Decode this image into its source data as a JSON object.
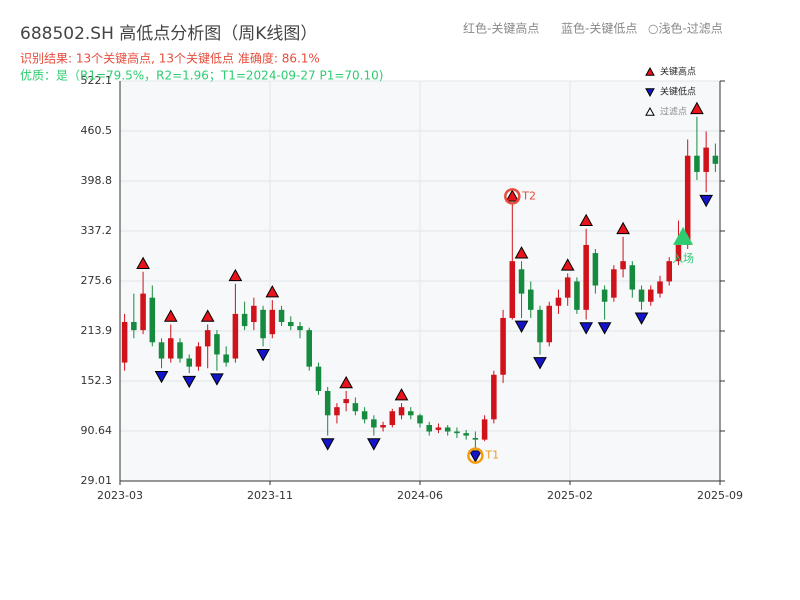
{
  "chart_data": {
    "type": "candlestick",
    "title": "688502.SH 高低点分析图（周K线图）",
    "header_legend": [
      "红色-关键高点",
      "蓝色-关键低点",
      "○浅色-过滤点"
    ],
    "result_text": "识别结果: 13个关键高点, 13个关键低点  准确度: 86.1%",
    "quality_text": "优质：是（R1=79.5%，R2=1.96；T1=2024-09-27 P1=70.10)",
    "up_color": "#d0121b",
    "down_color": "#168a3e",
    "ylim": [
      29.01,
      522.1
    ],
    "yticks": [
      29.01,
      90.64,
      152.3,
      213.9,
      275.6,
      337.2,
      398.8,
      460.5,
      522.1
    ],
    "xlim": [
      -0.5,
      64.5
    ],
    "xticks": [
      {
        "value": -0.5,
        "label": "2023-03"
      },
      {
        "value": 15.75,
        "label": "2023-11"
      },
      {
        "value": 32,
        "label": "2024-06"
      },
      {
        "value": 48.25,
        "label": "2025-02"
      },
      {
        "value": 64.5,
        "label": "2025-09"
      }
    ],
    "grid": true,
    "ohlc": [
      [
        175,
        235,
        165,
        225
      ],
      [
        225,
        260,
        205,
        215
      ],
      [
        215,
        287,
        210,
        260
      ],
      [
        255,
        270,
        195,
        200
      ],
      [
        200,
        205,
        168,
        180
      ],
      [
        180,
        222,
        175,
        205
      ],
      [
        200,
        205,
        175,
        180
      ],
      [
        180,
        185,
        162,
        170
      ],
      [
        170,
        200,
        165,
        195
      ],
      [
        195,
        222,
        168,
        215
      ],
      [
        210,
        215,
        165,
        185
      ],
      [
        185,
        195,
        170,
        175
      ],
      [
        180,
        272,
        175,
        235
      ],
      [
        235,
        250,
        215,
        220
      ],
      [
        225,
        255,
        215,
        245
      ],
      [
        240,
        245,
        195,
        205
      ],
      [
        210,
        252,
        205,
        240
      ],
      [
        240,
        245,
        220,
        225
      ],
      [
        225,
        232,
        215,
        220
      ],
      [
        220,
        225,
        205,
        215
      ],
      [
        215,
        218,
        165,
        170
      ],
      [
        170,
        175,
        135,
        140
      ],
      [
        140,
        145,
        85,
        110
      ],
      [
        110,
        125,
        100,
        120
      ],
      [
        125,
        140,
        115,
        130
      ],
      [
        125,
        132,
        110,
        115
      ],
      [
        115,
        120,
        100,
        105
      ],
      [
        105,
        110,
        85,
        95
      ],
      [
        95,
        102,
        90,
        98
      ],
      [
        98,
        118,
        95,
        115
      ],
      [
        110,
        125,
        105,
        120
      ],
      [
        115,
        120,
        105,
        110
      ],
      [
        110,
        112,
        95,
        100
      ],
      [
        98,
        102,
        85,
        90
      ],
      [
        92,
        100,
        88,
        95
      ],
      [
        95,
        98,
        85,
        90
      ],
      [
        90,
        95,
        82,
        88
      ],
      [
        88,
        92,
        80,
        85
      ],
      [
        82,
        90,
        70.1,
        80
      ],
      [
        80,
        110,
        78,
        105
      ],
      [
        105,
        165,
        100,
        160
      ],
      [
        160,
        240,
        150,
        230
      ],
      [
        230,
        370,
        228,
        300
      ],
      [
        290,
        300,
        230,
        260
      ],
      [
        265,
        275,
        230,
        240
      ],
      [
        240,
        245,
        185,
        200
      ],
      [
        200,
        250,
        195,
        245
      ],
      [
        245,
        265,
        235,
        255
      ],
      [
        255,
        285,
        245,
        280
      ],
      [
        275,
        280,
        235,
        240
      ],
      [
        240,
        340,
        228,
        320
      ],
      [
        310,
        315,
        260,
        270
      ],
      [
        265,
        270,
        228,
        250
      ],
      [
        255,
        295,
        250,
        290
      ],
      [
        290,
        330,
        280,
        300
      ],
      [
        295,
        300,
        255,
        265
      ],
      [
        265,
        270,
        240,
        250
      ],
      [
        250,
        270,
        245,
        265
      ],
      [
        260,
        282,
        255,
        275
      ],
      [
        275,
        305,
        270,
        300
      ],
      [
        300,
        350,
        295,
        320
      ],
      [
        320,
        450,
        315,
        430
      ],
      [
        430,
        478,
        400,
        410
      ],
      [
        410,
        460,
        385,
        440
      ],
      [
        430,
        445,
        410,
        420
      ]
    ],
    "series": [
      {
        "name": "关键高点",
        "color": "#e8141c",
        "kind": "high",
        "x": [
          2,
          5,
          9,
          12,
          16,
          24,
          30,
          42,
          43,
          48,
          50,
          54,
          62
        ],
        "values": [
          287,
          222,
          222,
          272,
          252,
          140,
          125,
          370,
          300,
          285,
          340,
          330,
          478
        ]
      },
      {
        "name": "关键低点",
        "color": "#1414c8",
        "kind": "low",
        "x": [
          4,
          7,
          10,
          15,
          22,
          27,
          38,
          43,
          45,
          50,
          52,
          56,
          63
        ],
        "values": [
          168,
          162,
          165,
          195,
          85,
          85,
          70.1,
          230,
          185,
          228,
          228,
          240,
          385
        ]
      },
      {
        "name": "过滤点",
        "color": "#ffffff",
        "kind": "filtered",
        "x": [],
        "values": []
      }
    ],
    "annotations": [
      {
        "label": "T1",
        "x": 38,
        "value": 70.1,
        "color": "#f39c12"
      },
      {
        "label": "T2",
        "x": 42,
        "value": 370,
        "color": "#e74c3c"
      },
      {
        "label": "入场",
        "x": 60.5,
        "value": 330,
        "color": "#2ecc71"
      }
    ]
  }
}
